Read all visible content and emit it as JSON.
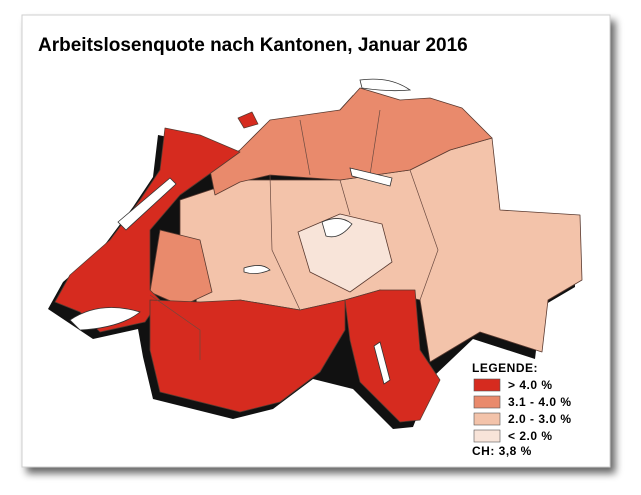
{
  "title": "Arbeitslosenquote nach Kantonen, Januar 2016",
  "legend": {
    "title": "LEGENDE:",
    "items": [
      {
        "label": "> 4.0 %",
        "color": "#d62b1f"
      },
      {
        "label": "3.1 - 4.0 %",
        "color": "#e98a6c"
      },
      {
        "label": "2.0 - 3.0 %",
        "color": "#f3c3aa"
      },
      {
        "label": "< 2.0 %",
        "color": "#f8e4d9"
      }
    ]
  },
  "total": "CH: 3,8 %"
}
